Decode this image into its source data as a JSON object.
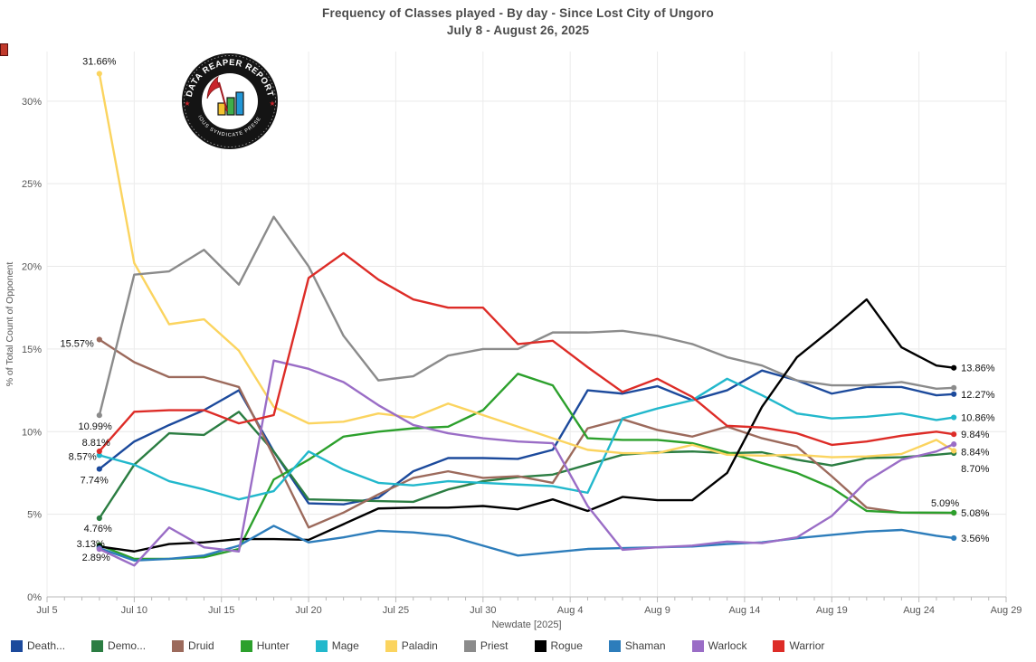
{
  "title": {
    "line1": "Frequency of Classes played - By day - Since Lost City of Ungoro",
    "line2": "July 8 - August 26, 2025"
  },
  "logo": {
    "text_top": "DATA REAPER REPORT",
    "text_bottom": "VICIOUS SYNDICATE PRESENTS",
    "accent_red": "#c9252b",
    "bar_colors": [
      "#f2c230",
      "#3fae49",
      "#2196d6"
    ]
  },
  "chart_data": {
    "type": "line",
    "title": "Frequency of Classes played - By day - Since Lost City of Ungoro",
    "subtitle": "July 8 - August 26, 2025",
    "xlabel": "Newdate [2025]",
    "ylabel": "% of Total Count of Opponent",
    "ylim": [
      0,
      33
    ],
    "grid": true,
    "legend_position": "bottom",
    "y_ticks": [
      0,
      5,
      10,
      15,
      20,
      25,
      30
    ],
    "y_tick_suffix": "%",
    "x_ticks": [
      {
        "day": -3,
        "label": "Jul 5"
      },
      {
        "day": 2,
        "label": "Jul 10"
      },
      {
        "day": 7,
        "label": "Jul 15"
      },
      {
        "day": 12,
        "label": "Jul 20"
      },
      {
        "day": 17,
        "label": "Jul 25"
      },
      {
        "day": 22,
        "label": "Jul 30"
      },
      {
        "day": 27,
        "label": "Aug 4"
      },
      {
        "day": 32,
        "label": "Aug 9"
      },
      {
        "day": 37,
        "label": "Aug 14"
      },
      {
        "day": 42,
        "label": "Aug 19"
      },
      {
        "day": 47,
        "label": "Aug 24"
      },
      {
        "day": 52,
        "label": "Aug 29"
      }
    ],
    "x_days": [
      0,
      2,
      4,
      6,
      8,
      10,
      12,
      14,
      16,
      18,
      20,
      22,
      24,
      26,
      28,
      30,
      32,
      34,
      36,
      38,
      40,
      42,
      44,
      46,
      48,
      49
    ],
    "x_dates": [
      "Jul 8",
      "Jul 10",
      "Jul 12",
      "Jul 14",
      "Jul 16",
      "Jul 18",
      "Jul 20",
      "Jul 22",
      "Jul 24",
      "Jul 26",
      "Jul 28",
      "Jul 30",
      "Aug 1",
      "Aug 3",
      "Aug 5",
      "Aug 7",
      "Aug 9",
      "Aug 11",
      "Aug 13",
      "Aug 15",
      "Aug 17",
      "Aug 19",
      "Aug 21",
      "Aug 23",
      "Aug 25",
      "Aug 26"
    ],
    "series": [
      {
        "name": "Death Knight",
        "legend_label": "Death...",
        "color": "#1c4a9c",
        "values": [
          7.74,
          9.4,
          10.4,
          11.3,
          12.5,
          8.8,
          5.66,
          5.6,
          6.0,
          7.6,
          8.4,
          8.4,
          8.35,
          8.9,
          12.5,
          12.3,
          12.75,
          11.9,
          12.5,
          13.7,
          13.1,
          12.3,
          12.7,
          12.7,
          12.2,
          12.27
        ],
        "ann_left": {
          "text": "7.74%",
          "anchor": "end",
          "dx": 10,
          "dy": 16
        },
        "ann_right": {
          "text": "12.27%",
          "anchor": "start",
          "dx": 8,
          "dy": 4
        }
      },
      {
        "name": "Demon Hunter",
        "legend_label": "Demo...",
        "color": "#2b7d42",
        "values": [
          4.76,
          8.0,
          9.9,
          9.8,
          11.2,
          8.8,
          5.9,
          5.85,
          5.8,
          5.75,
          6.5,
          7.0,
          7.25,
          7.4,
          8.0,
          8.6,
          8.75,
          8.8,
          8.7,
          8.75,
          8.3,
          7.95,
          8.4,
          8.45,
          8.6,
          8.7
        ],
        "ann_left": {
          "text": "4.76%",
          "anchor": "end",
          "dx": 14,
          "dy": 15
        },
        "ann_right": {
          "text": "8.70%",
          "anchor": "start",
          "dx": 8,
          "dy": 21
        }
      },
      {
        "name": "Druid",
        "legend_label": "Druid",
        "color": "#9c6a5c",
        "values": [
          15.57,
          14.2,
          13.3,
          13.3,
          12.7,
          8.5,
          4.2,
          5.1,
          6.2,
          7.2,
          7.6,
          7.2,
          7.3,
          6.9,
          10.2,
          10.75,
          10.1,
          9.7,
          10.3,
          9.6,
          9.1,
          7.3,
          5.4,
          5.1,
          5.08,
          5.08
        ],
        "ann_left": {
          "text": "15.57%",
          "anchor": "end",
          "dx": -6,
          "dy": 8
        },
        "ann_right": {
          "text": "5.08%",
          "anchor": "start",
          "dx": 8,
          "dy": 4
        }
      },
      {
        "name": "Hunter",
        "legend_label": "Hunter",
        "color": "#2ca02c",
        "values": [
          3.13,
          2.3,
          2.3,
          2.4,
          2.9,
          7.1,
          8.3,
          9.7,
          10.0,
          10.2,
          10.3,
          11.3,
          13.5,
          12.8,
          9.6,
          9.5,
          9.5,
          9.3,
          8.75,
          8.1,
          7.5,
          6.6,
          5.2,
          5.1,
          5.1,
          5.09
        ],
        "ann_left": {
          "text": "3.13%",
          "anchor": "end",
          "dx": 6,
          "dy": 2
        },
        "ann_right": {
          "text": "5.09%",
          "anchor": "end",
          "dx": 6,
          "dy": -7
        }
      },
      {
        "name": "Mage",
        "legend_label": "Mage",
        "color": "#22b8cc",
        "values": [
          8.57,
          8.0,
          7.0,
          6.5,
          5.9,
          6.4,
          8.8,
          7.7,
          6.9,
          6.75,
          7.0,
          6.9,
          6.8,
          6.7,
          6.3,
          10.8,
          11.4,
          11.9,
          13.2,
          12.2,
          11.1,
          10.8,
          10.9,
          11.1,
          10.7,
          10.86
        ],
        "ann_left": {
          "text": "8.57%",
          "anchor": "end",
          "dx": -3,
          "dy": 5
        },
        "ann_right": {
          "text": "10.86%",
          "anchor": "start",
          "dx": 8,
          "dy": 4
        }
      },
      {
        "name": "Paladin",
        "legend_label": "Paladin",
        "color": "#fbd45f",
        "values": [
          31.66,
          20.2,
          16.5,
          16.8,
          14.9,
          11.5,
          10.5,
          10.6,
          11.1,
          10.85,
          11.7,
          11.0,
          10.3,
          9.6,
          8.9,
          8.7,
          8.7,
          9.2,
          8.6,
          8.55,
          8.6,
          8.45,
          8.5,
          8.65,
          9.5,
          8.84
        ],
        "ann_left": {
          "text": "31.66%",
          "anchor": "middle",
          "dx": 0,
          "dy": -10
        },
        "ann_right": {
          "text": "8.84%",
          "anchor": "start",
          "dx": 8,
          "dy": 5
        }
      },
      {
        "name": "Priest",
        "legend_label": "Priest",
        "color": "#8b8b8b",
        "values": [
          10.99,
          19.5,
          19.7,
          21.0,
          18.9,
          23.0,
          20.0,
          15.8,
          13.1,
          13.35,
          14.6,
          15.0,
          15.0,
          16.0,
          16.0,
          16.1,
          15.8,
          15.3,
          14.5,
          14.0,
          13.1,
          12.8,
          12.8,
          13.0,
          12.6,
          12.65
        ],
        "ann_left": {
          "text": "10.99%",
          "anchor": "end",
          "dx": 14,
          "dy": 16
        },
        "ann_right": null
      },
      {
        "name": "Rogue",
        "legend_label": "Rogue",
        "color": "#000000",
        "values": [
          3.05,
          2.75,
          3.2,
          3.3,
          3.5,
          3.5,
          3.45,
          4.4,
          5.35,
          5.4,
          5.4,
          5.5,
          5.3,
          5.9,
          5.2,
          6.05,
          5.85,
          5.85,
          7.5,
          11.5,
          14.5,
          16.2,
          18.0,
          15.1,
          14.0,
          13.86
        ],
        "ann_left": null,
        "ann_right": {
          "text": "13.86%",
          "anchor": "start",
          "dx": 8,
          "dy": 4
        }
      },
      {
        "name": "Shaman",
        "legend_label": "Shaman",
        "color": "#2d7dbb",
        "values": [
          2.95,
          2.2,
          2.3,
          2.5,
          3.1,
          4.3,
          3.3,
          3.6,
          4.0,
          3.9,
          3.7,
          3.1,
          2.5,
          2.7,
          2.9,
          2.95,
          3.0,
          3.05,
          3.2,
          3.3,
          3.55,
          3.75,
          3.95,
          4.05,
          3.7,
          3.56
        ],
        "ann_left": null,
        "ann_right": {
          "text": "3.56%",
          "anchor": "start",
          "dx": 8,
          "dy": 4
        }
      },
      {
        "name": "Warlock",
        "legend_label": "Warlock",
        "color": "#9a6dc6",
        "values": [
          2.89,
          1.9,
          4.2,
          3.0,
          2.75,
          14.3,
          13.8,
          13.0,
          11.6,
          10.4,
          9.9,
          9.6,
          9.4,
          9.3,
          5.5,
          2.85,
          3.0,
          3.1,
          3.35,
          3.25,
          3.6,
          4.9,
          7.0,
          8.3,
          8.8,
          9.24
        ],
        "ann_left": {
          "text": "2.89%",
          "anchor": "end",
          "dx": 12,
          "dy": 13
        },
        "ann_right": null
      },
      {
        "name": "Warrior",
        "legend_label": "Warrior",
        "color": "#dd2c27",
        "values": [
          8.81,
          11.2,
          11.3,
          11.3,
          10.5,
          11.0,
          19.3,
          20.8,
          19.2,
          18.0,
          17.5,
          17.5,
          15.3,
          15.5,
          13.9,
          12.4,
          13.2,
          12.1,
          10.35,
          10.25,
          9.9,
          9.2,
          9.4,
          9.75,
          10.0,
          9.84
        ],
        "ann_left": {
          "text": "8.81%",
          "anchor": "end",
          "dx": 12,
          "dy": -6
        },
        "ann_right": {
          "text": "9.84%",
          "anchor": "start",
          "dx": 8,
          "dy": 4
        }
      }
    ]
  }
}
